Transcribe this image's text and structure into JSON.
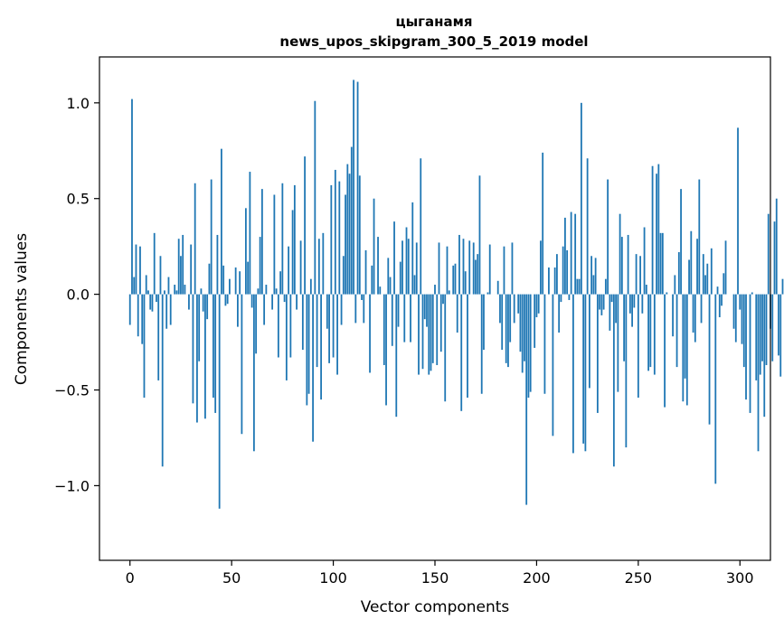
{
  "chart_data": {
    "type": "bar",
    "title_line1": "цыганамя",
    "title_line2": "news_upos_skipgram_300_5_2019 model",
    "xlabel": "Vector components",
    "ylabel": "Components values",
    "xlim": [
      -15,
      315
    ],
    "ylim": [
      -1.39,
      1.24
    ],
    "xticks": [
      0,
      50,
      100,
      150,
      200,
      250,
      300
    ],
    "xtick_labels": [
      "0",
      "50",
      "100",
      "150",
      "200",
      "250",
      "300"
    ],
    "yticks": [
      -1.0,
      -0.5,
      0.0,
      0.5,
      1.0
    ],
    "ytick_labels": [
      "−1.0",
      "−0.5",
      "0.0",
      "0.5",
      "1.0"
    ],
    "bar_color": "#1f77b4",
    "grid": false,
    "legend": "none",
    "values": [
      -0.16,
      1.02,
      0.09,
      0.26,
      -0.22,
      0.25,
      -0.26,
      -0.54,
      0.1,
      0.02,
      -0.08,
      -0.09,
      0.32,
      -0.04,
      -0.45,
      0.2,
      -0.9,
      0.02,
      -0.18,
      0.09,
      -0.16,
      0.0,
      0.05,
      0.02,
      0.29,
      0.2,
      0.31,
      0.05,
      0.0,
      -0.08,
      0.26,
      -0.57,
      0.58,
      -0.67,
      -0.35,
      0.03,
      -0.09,
      -0.65,
      -0.13,
      0.16,
      0.6,
      -0.54,
      -0.62,
      0.31,
      -1.12,
      0.76,
      0.15,
      -0.06,
      -0.05,
      0.08,
      0.0,
      0.0,
      0.14,
      -0.17,
      0.12,
      -0.73,
      0.0,
      0.45,
      0.17,
      0.64,
      -0.07,
      -0.82,
      -0.31,
      0.03,
      0.3,
      0.55,
      -0.16,
      0.05,
      0.0,
      0.0,
      -0.08,
      0.52,
      0.03,
      -0.33,
      0.12,
      0.58,
      -0.04,
      -0.45,
      0.25,
      -0.33,
      0.44,
      0.57,
      -0.08,
      0.0,
      0.28,
      -0.29,
      0.72,
      -0.58,
      -0.52,
      0.08,
      -0.77,
      1.01,
      -0.38,
      0.29,
      -0.55,
      0.32,
      0.0,
      -0.18,
      -0.36,
      0.57,
      -0.33,
      0.65,
      -0.42,
      0.59,
      -0.16,
      0.2,
      0.52,
      0.68,
      0.63,
      0.77,
      1.12,
      -0.15,
      1.11,
      0.62,
      -0.03,
      -0.15,
      0.23,
      0.0,
      -0.41,
      0.15,
      0.5,
      0.0,
      0.3,
      0.04,
      0.0,
      -0.37,
      -0.58,
      0.19,
      0.09,
      -0.27,
      0.38,
      -0.64,
      -0.17,
      0.17,
      0.28,
      -0.25,
      0.35,
      0.29,
      -0.25,
      0.48,
      0.1,
      0.27,
      -0.42,
      0.71,
      -0.39,
      -0.13,
      -0.17,
      -0.42,
      -0.4,
      -0.36,
      0.05,
      -0.37,
      0.27,
      -0.3,
      -0.05,
      -0.56,
      0.25,
      0.02,
      0.0,
      0.15,
      0.16,
      -0.2,
      0.31,
      -0.61,
      0.29,
      0.12,
      -0.54,
      0.28,
      0.0,
      0.27,
      0.18,
      0.21,
      0.62,
      -0.52,
      -0.29,
      0.0,
      0.01,
      0.26,
      0.0,
      0.0,
      0.0,
      0.07,
      -0.15,
      -0.29,
      0.25,
      -0.36,
      -0.38,
      -0.25,
      0.27,
      -0.15,
      0.0,
      -0.1,
      -0.3,
      -0.41,
      -0.35,
      -1.1,
      -0.54,
      -0.51,
      0.0,
      -0.28,
      -0.12,
      -0.1,
      0.28,
      0.74,
      -0.52,
      0.0,
      0.14,
      0.0,
      -0.74,
      0.14,
      0.21,
      -0.2,
      -0.04,
      0.25,
      0.4,
      0.23,
      -0.03,
      0.43,
      -0.83,
      0.42,
      0.08,
      0.08,
      1.0,
      -0.78,
      -0.82,
      0.71,
      -0.49,
      0.2,
      0.1,
      0.19,
      -0.62,
      -0.08,
      -0.11,
      -0.08,
      0.08,
      0.6,
      -0.19,
      -0.04,
      -0.9,
      -0.15,
      -0.51,
      0.42,
      0.3,
      -0.35,
      -0.8,
      0.31,
      -0.1,
      -0.17,
      -0.07,
      0.21,
      -0.54,
      0.2,
      -0.1,
      0.35,
      0.05,
      -0.4,
      -0.38,
      0.67,
      -0.42,
      0.63,
      0.68,
      0.32,
      0.32,
      -0.59,
      0.01,
      0.0,
      0.0,
      -0.22,
      0.1,
      -0.38,
      0.22,
      0.55,
      -0.56,
      -0.44,
      -0.58,
      0.18,
      0.33,
      -0.2,
      -0.25,
      0.29,
      0.6,
      -0.15,
      0.21,
      0.1,
      0.16,
      -0.68,
      0.24,
      0.0,
      -0.99,
      0.04,
      -0.12,
      -0.06,
      0.11,
      0.28,
      0.0,
      0.0,
      0.0,
      -0.18,
      -0.25,
      0.87,
      -0.08,
      -0.26,
      -0.38,
      -0.55,
      0.0,
      -0.62,
      0.01,
      0.0,
      -0.45,
      -0.82,
      -0.42,
      -0.35,
      -0.64,
      -0.37,
      0.42,
      -0.18,
      -0.35,
      0.38,
      0.5,
      -0.32,
      -0.43,
      0.08,
      0.0,
      0.0,
      0.0,
      0.0
    ]
  }
}
